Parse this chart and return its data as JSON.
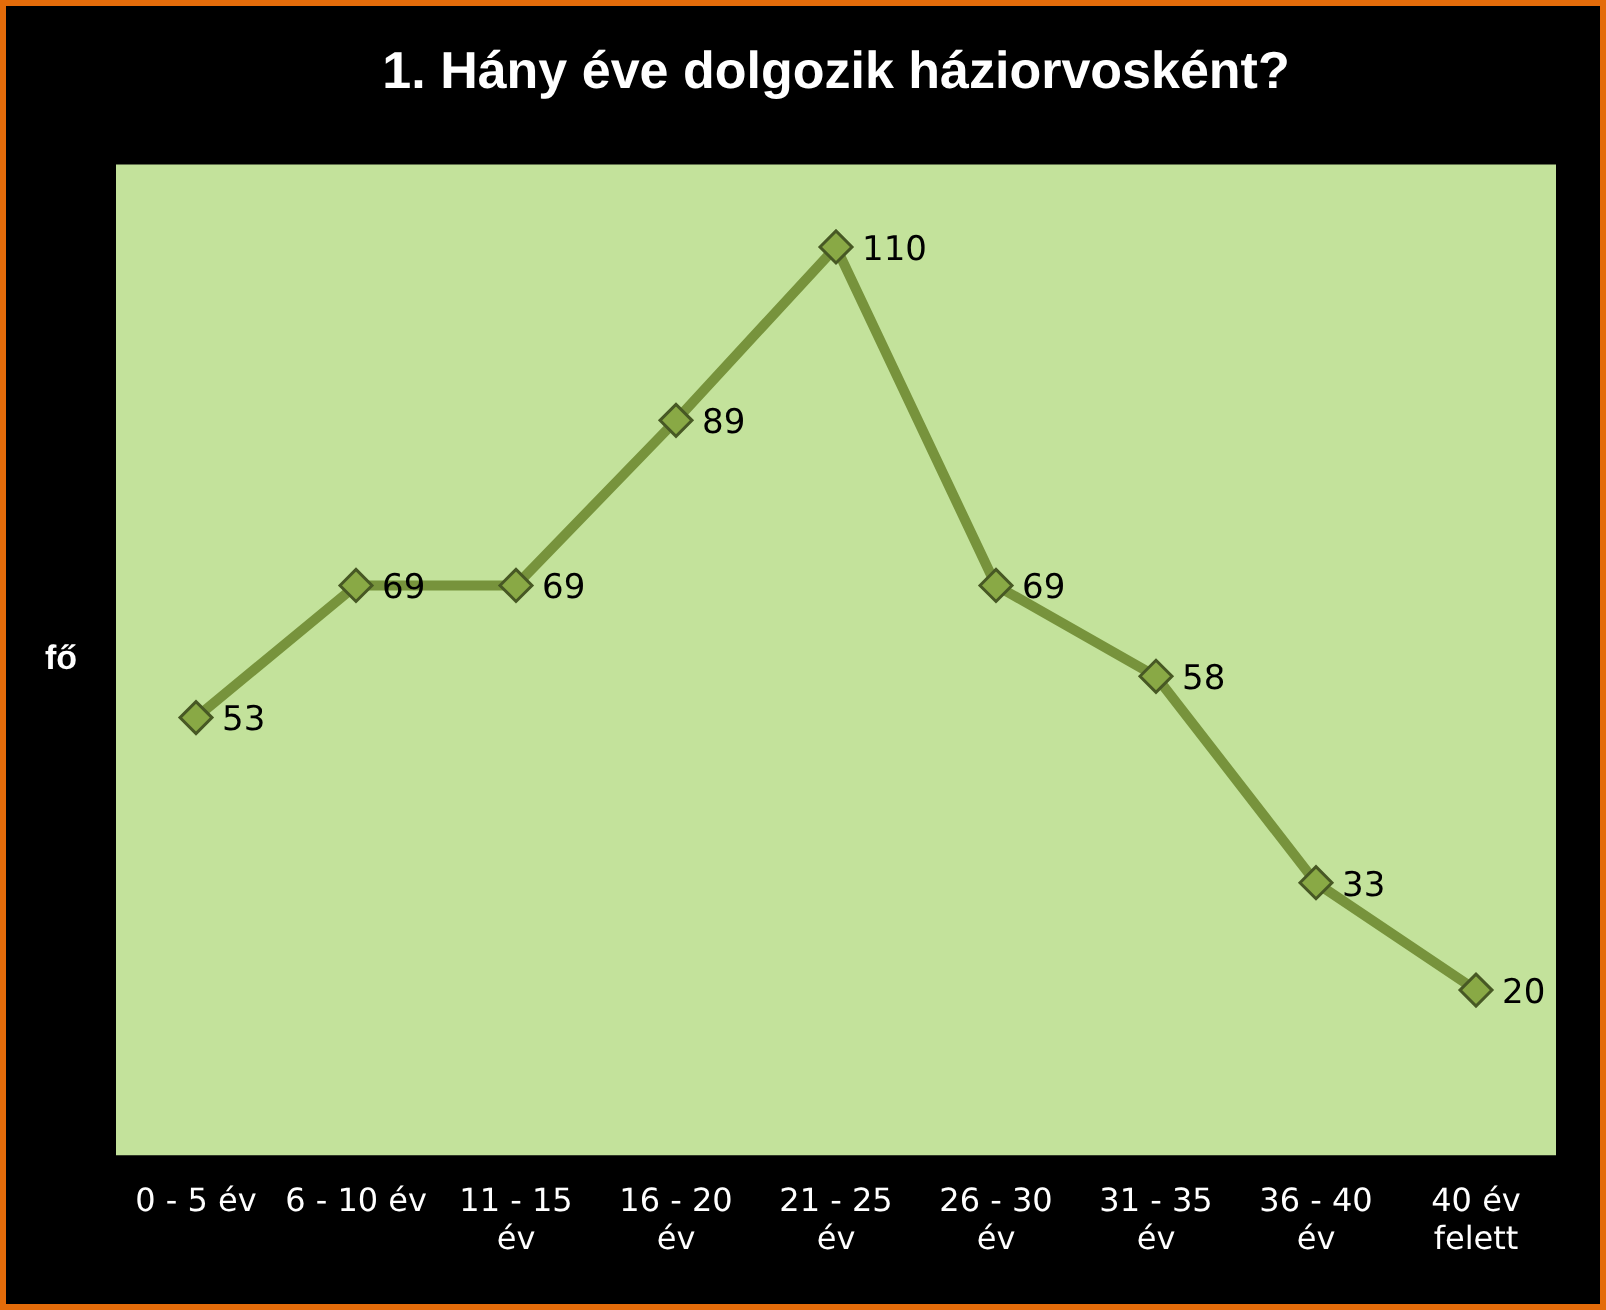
{
  "chart_data": {
    "type": "line",
    "title": "1. Hány éve dolgozik háziorvosként?",
    "ylabel": "fő",
    "categories": [
      "0 - 5 év",
      "6 - 10 év",
      "11 - 15 év",
      "16 - 20 év",
      "21 - 25 év",
      "26 - 30 év",
      "31 - 35 év",
      "36 - 40 év",
      "40 év felett"
    ],
    "series": [
      {
        "color": "#77933c",
        "values": [
          53,
          69,
          69,
          89,
          110,
          69,
          58,
          33,
          20
        ]
      }
    ],
    "ylim": [
      0,
      120
    ],
    "tick_labels": "x",
    "grid": false,
    "legend": false,
    "marker": "diamond",
    "line_style": "solid",
    "data_labels": true
  }
}
